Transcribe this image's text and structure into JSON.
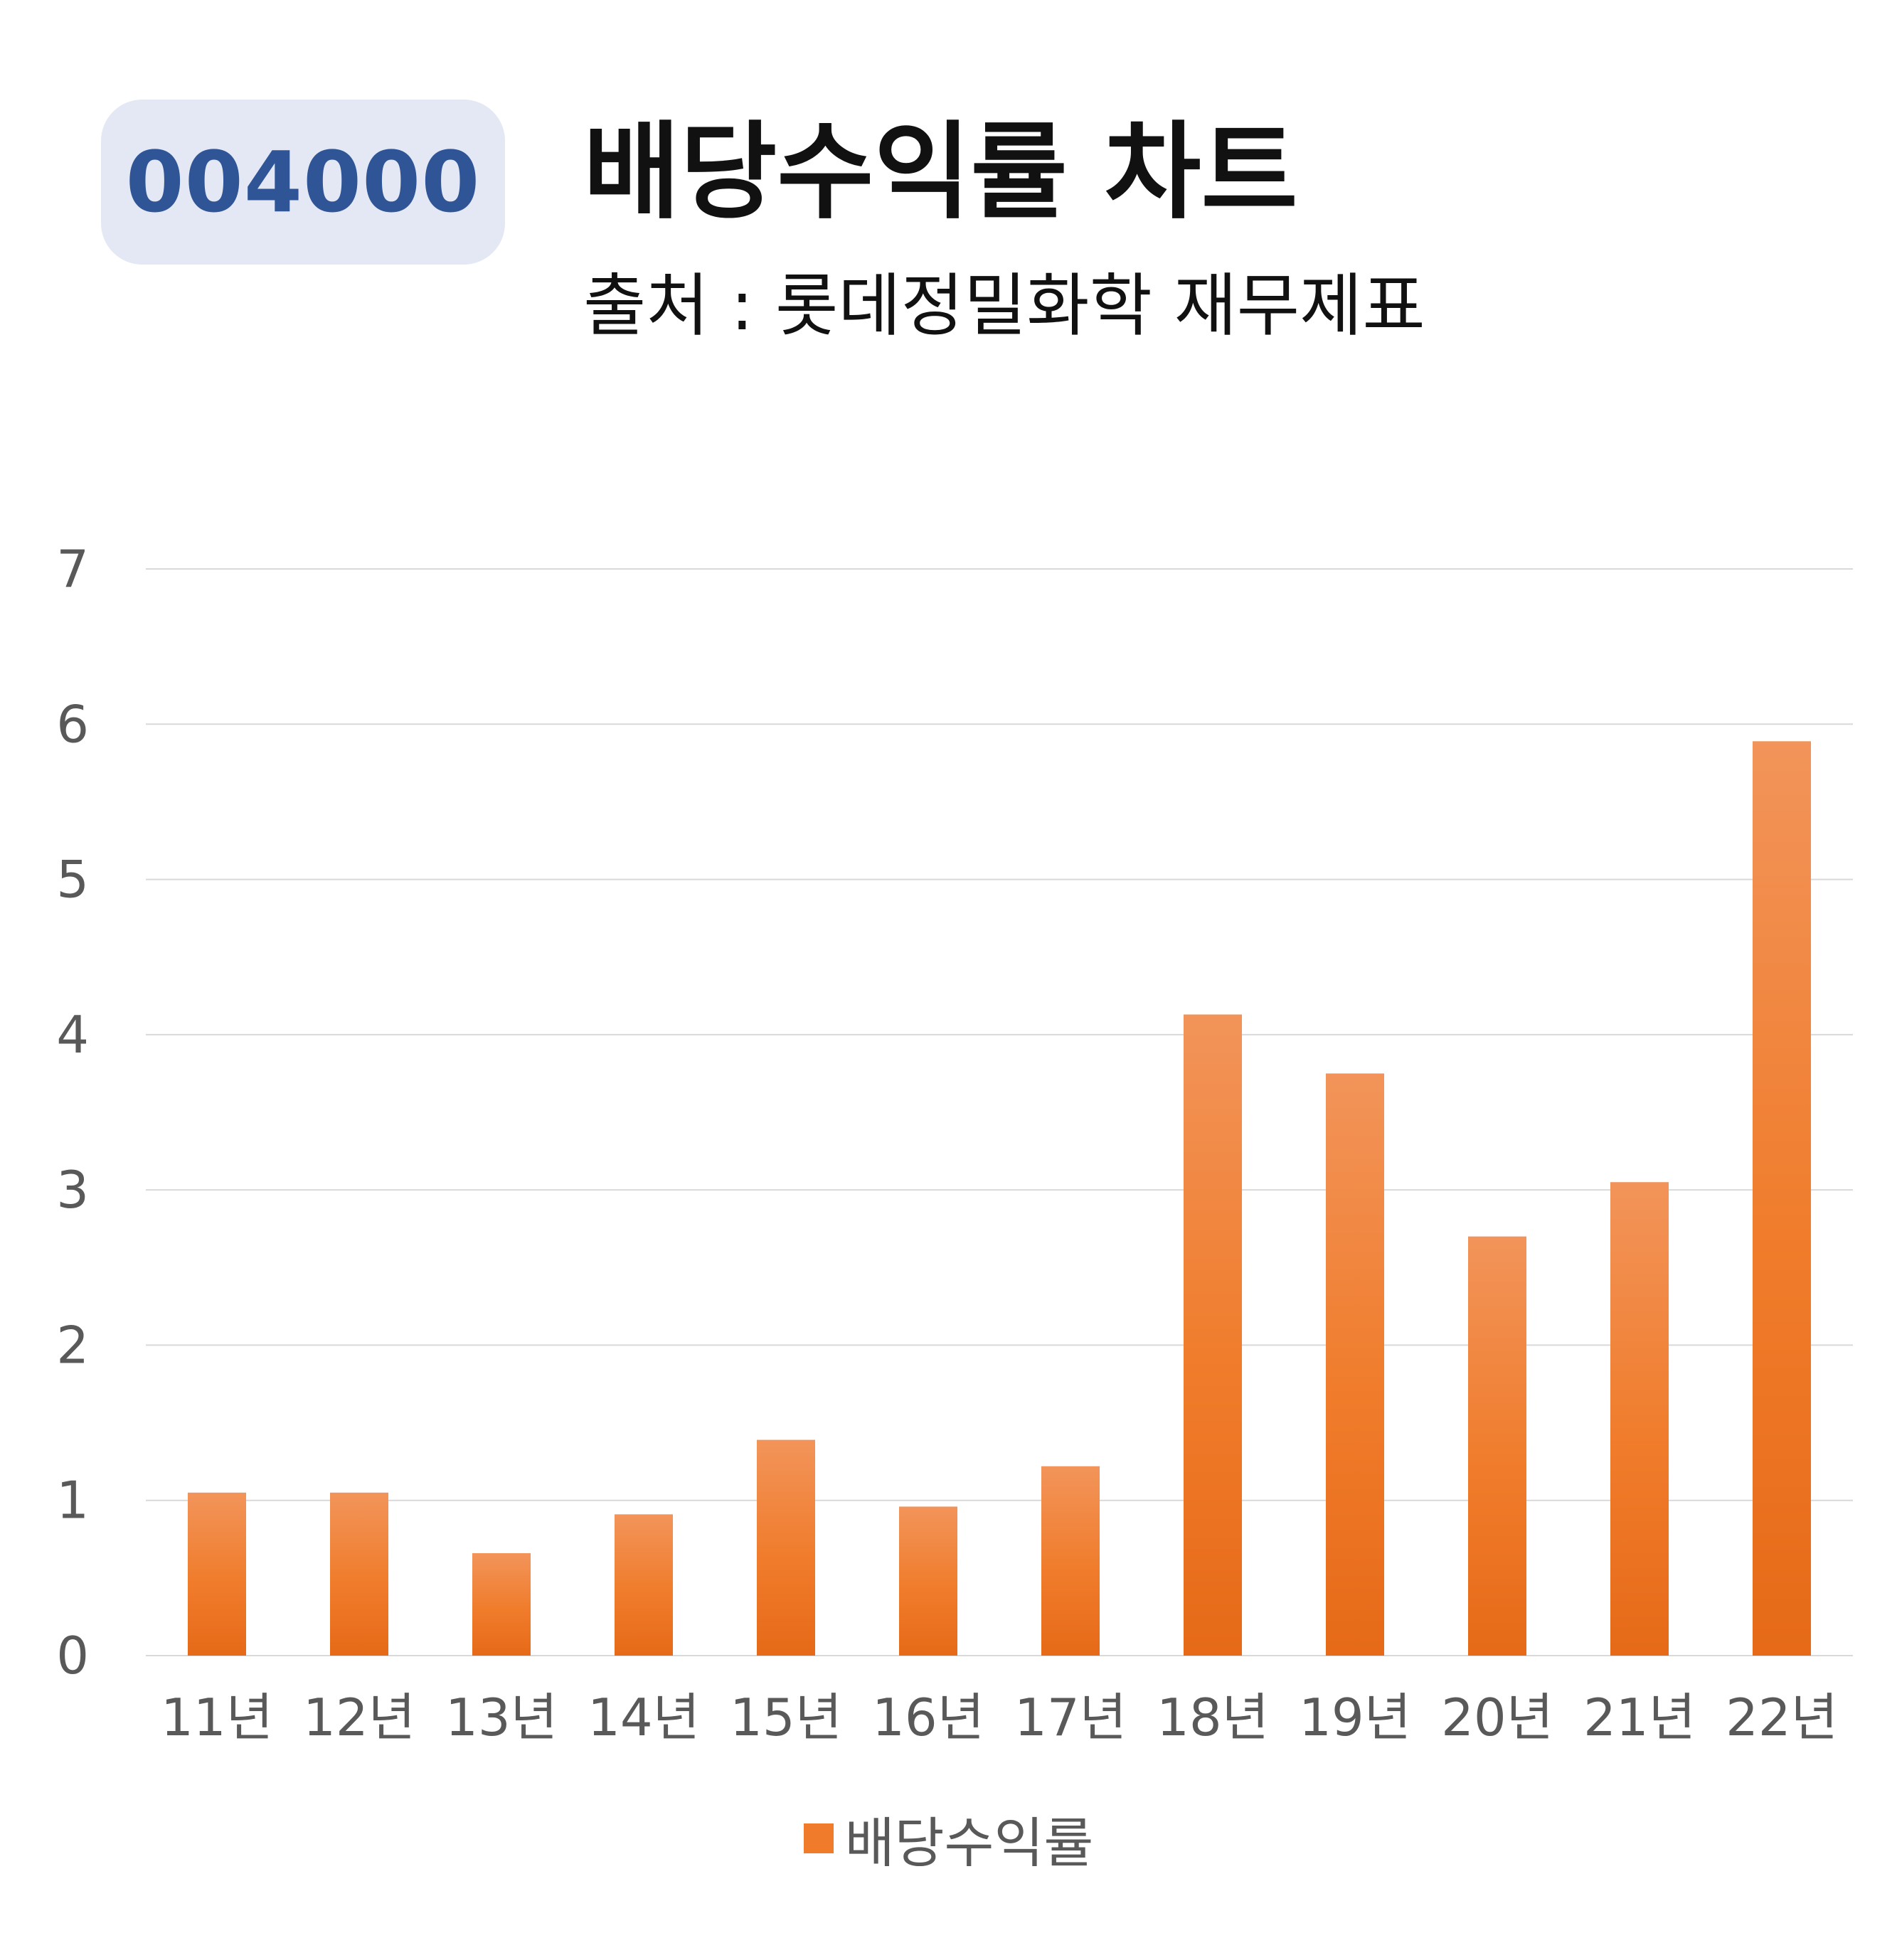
{
  "badge": {
    "code": "004000"
  },
  "header": {
    "title": "배당수익률 차트",
    "subtitle": "출처 : 롯데정밀화학 재무제표"
  },
  "colors": {
    "bar": "#f07c2b",
    "bar_light": "#f2945a",
    "bar_dark": "#e66a18",
    "grid": "#d9d9d9",
    "axis_text": "#595959"
  },
  "chart_data": {
    "type": "bar",
    "title": "배당수익률 차트",
    "xlabel": "",
    "ylabel": "",
    "categories": [
      "11년",
      "12년",
      "13년",
      "14년",
      "15년",
      "16년",
      "17년",
      "18년",
      "19년",
      "20년",
      "21년",
      "22년"
    ],
    "series": [
      {
        "name": "배당수익률",
        "values": [
          1.05,
          1.05,
          0.66,
          0.91,
          1.39,
          0.96,
          1.22,
          4.13,
          3.75,
          2.7,
          3.05,
          5.89
        ]
      }
    ],
    "ylim": [
      0,
      7
    ],
    "yticks": [
      0,
      1,
      2,
      3,
      4,
      5,
      6,
      7
    ],
    "grid": true,
    "legend": "bottom"
  }
}
